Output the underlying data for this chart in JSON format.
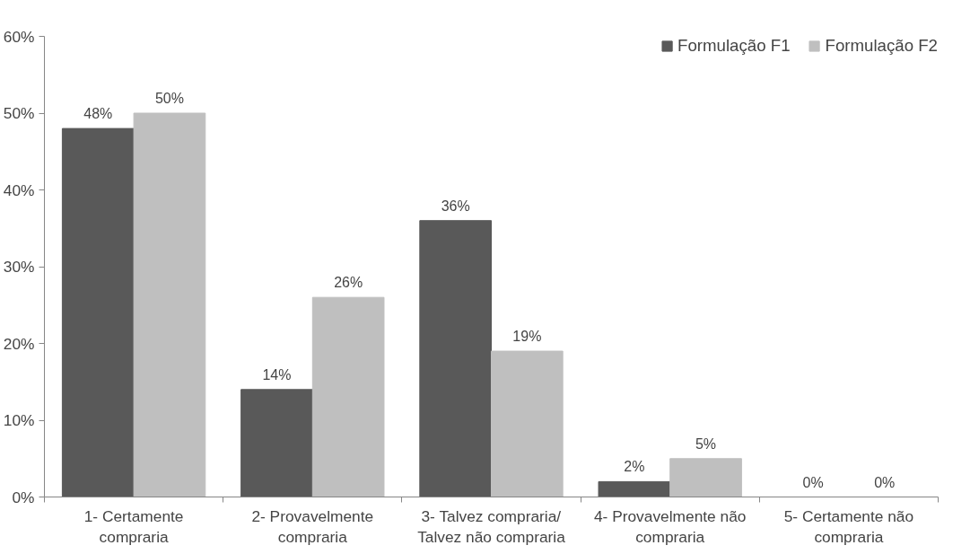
{
  "chart_data": {
    "type": "bar",
    "categories": [
      "1- Certamente compraria",
      "2- Provavelmente compraria",
      "3- Talvez compraria/ Talvez não compraria",
      "4- Provavelmente não compraria",
      "5- Certamente não compraria"
    ],
    "series": [
      {
        "name": "Formulação F1",
        "color": "#595959",
        "values": [
          48,
          14,
          36,
          2,
          0
        ],
        "value_labels": [
          "48%",
          "14%",
          "36%",
          "2%",
          "0%"
        ]
      },
      {
        "name": "Formulação F2",
        "color": "#bfbfbf",
        "values": [
          50,
          26,
          19,
          5,
          0
        ],
        "value_labels": [
          "50%",
          "26%",
          "19%",
          "5%",
          "0%"
        ]
      }
    ],
    "ylim": [
      0,
      60
    ],
    "yticks": [
      {
        "value": 0,
        "label": "0%"
      },
      {
        "value": 10,
        "label": "10%"
      },
      {
        "value": 20,
        "label": "20%"
      },
      {
        "value": 30,
        "label": "30%"
      },
      {
        "value": 40,
        "label": "40%"
      },
      {
        "value": 50,
        "label": "50%"
      },
      {
        "value": 60,
        "label": "60%"
      }
    ],
    "grid": false,
    "legend": "top right"
  }
}
